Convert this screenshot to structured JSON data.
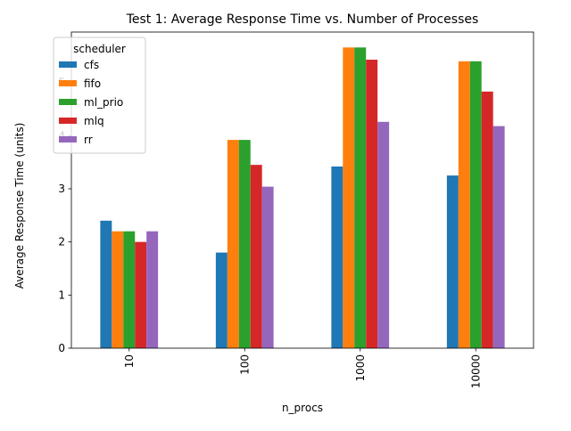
{
  "chart_data": {
    "type": "bar",
    "title": "Test 1: Average Response Time vs. Number of Processes",
    "xlabel": "n_procs",
    "ylabel": "Average Response Time (units)",
    "categories": [
      "10",
      "100",
      "1000",
      "10000"
    ],
    "ylim": [
      0,
      5.95
    ],
    "yticks": [
      0,
      1,
      2,
      3,
      4,
      5
    ],
    "grid": false,
    "legend": {
      "title": "scheduler",
      "position": "top-left"
    },
    "series": [
      {
        "name": "cfs",
        "color": "#1f77b4",
        "values": [
          2.4,
          1.8,
          3.42,
          3.25
        ]
      },
      {
        "name": "fifo",
        "color": "#ff7f0e",
        "values": [
          2.2,
          3.92,
          5.66,
          5.4
        ]
      },
      {
        "name": "ml_prio",
        "color": "#2ca02c",
        "values": [
          2.2,
          3.92,
          5.66,
          5.4
        ]
      },
      {
        "name": "mlq",
        "color": "#d62728",
        "values": [
          2.0,
          3.45,
          5.43,
          4.83
        ]
      },
      {
        "name": "rr",
        "color": "#9467bd",
        "values": [
          2.2,
          3.04,
          4.26,
          4.18
        ]
      }
    ]
  }
}
